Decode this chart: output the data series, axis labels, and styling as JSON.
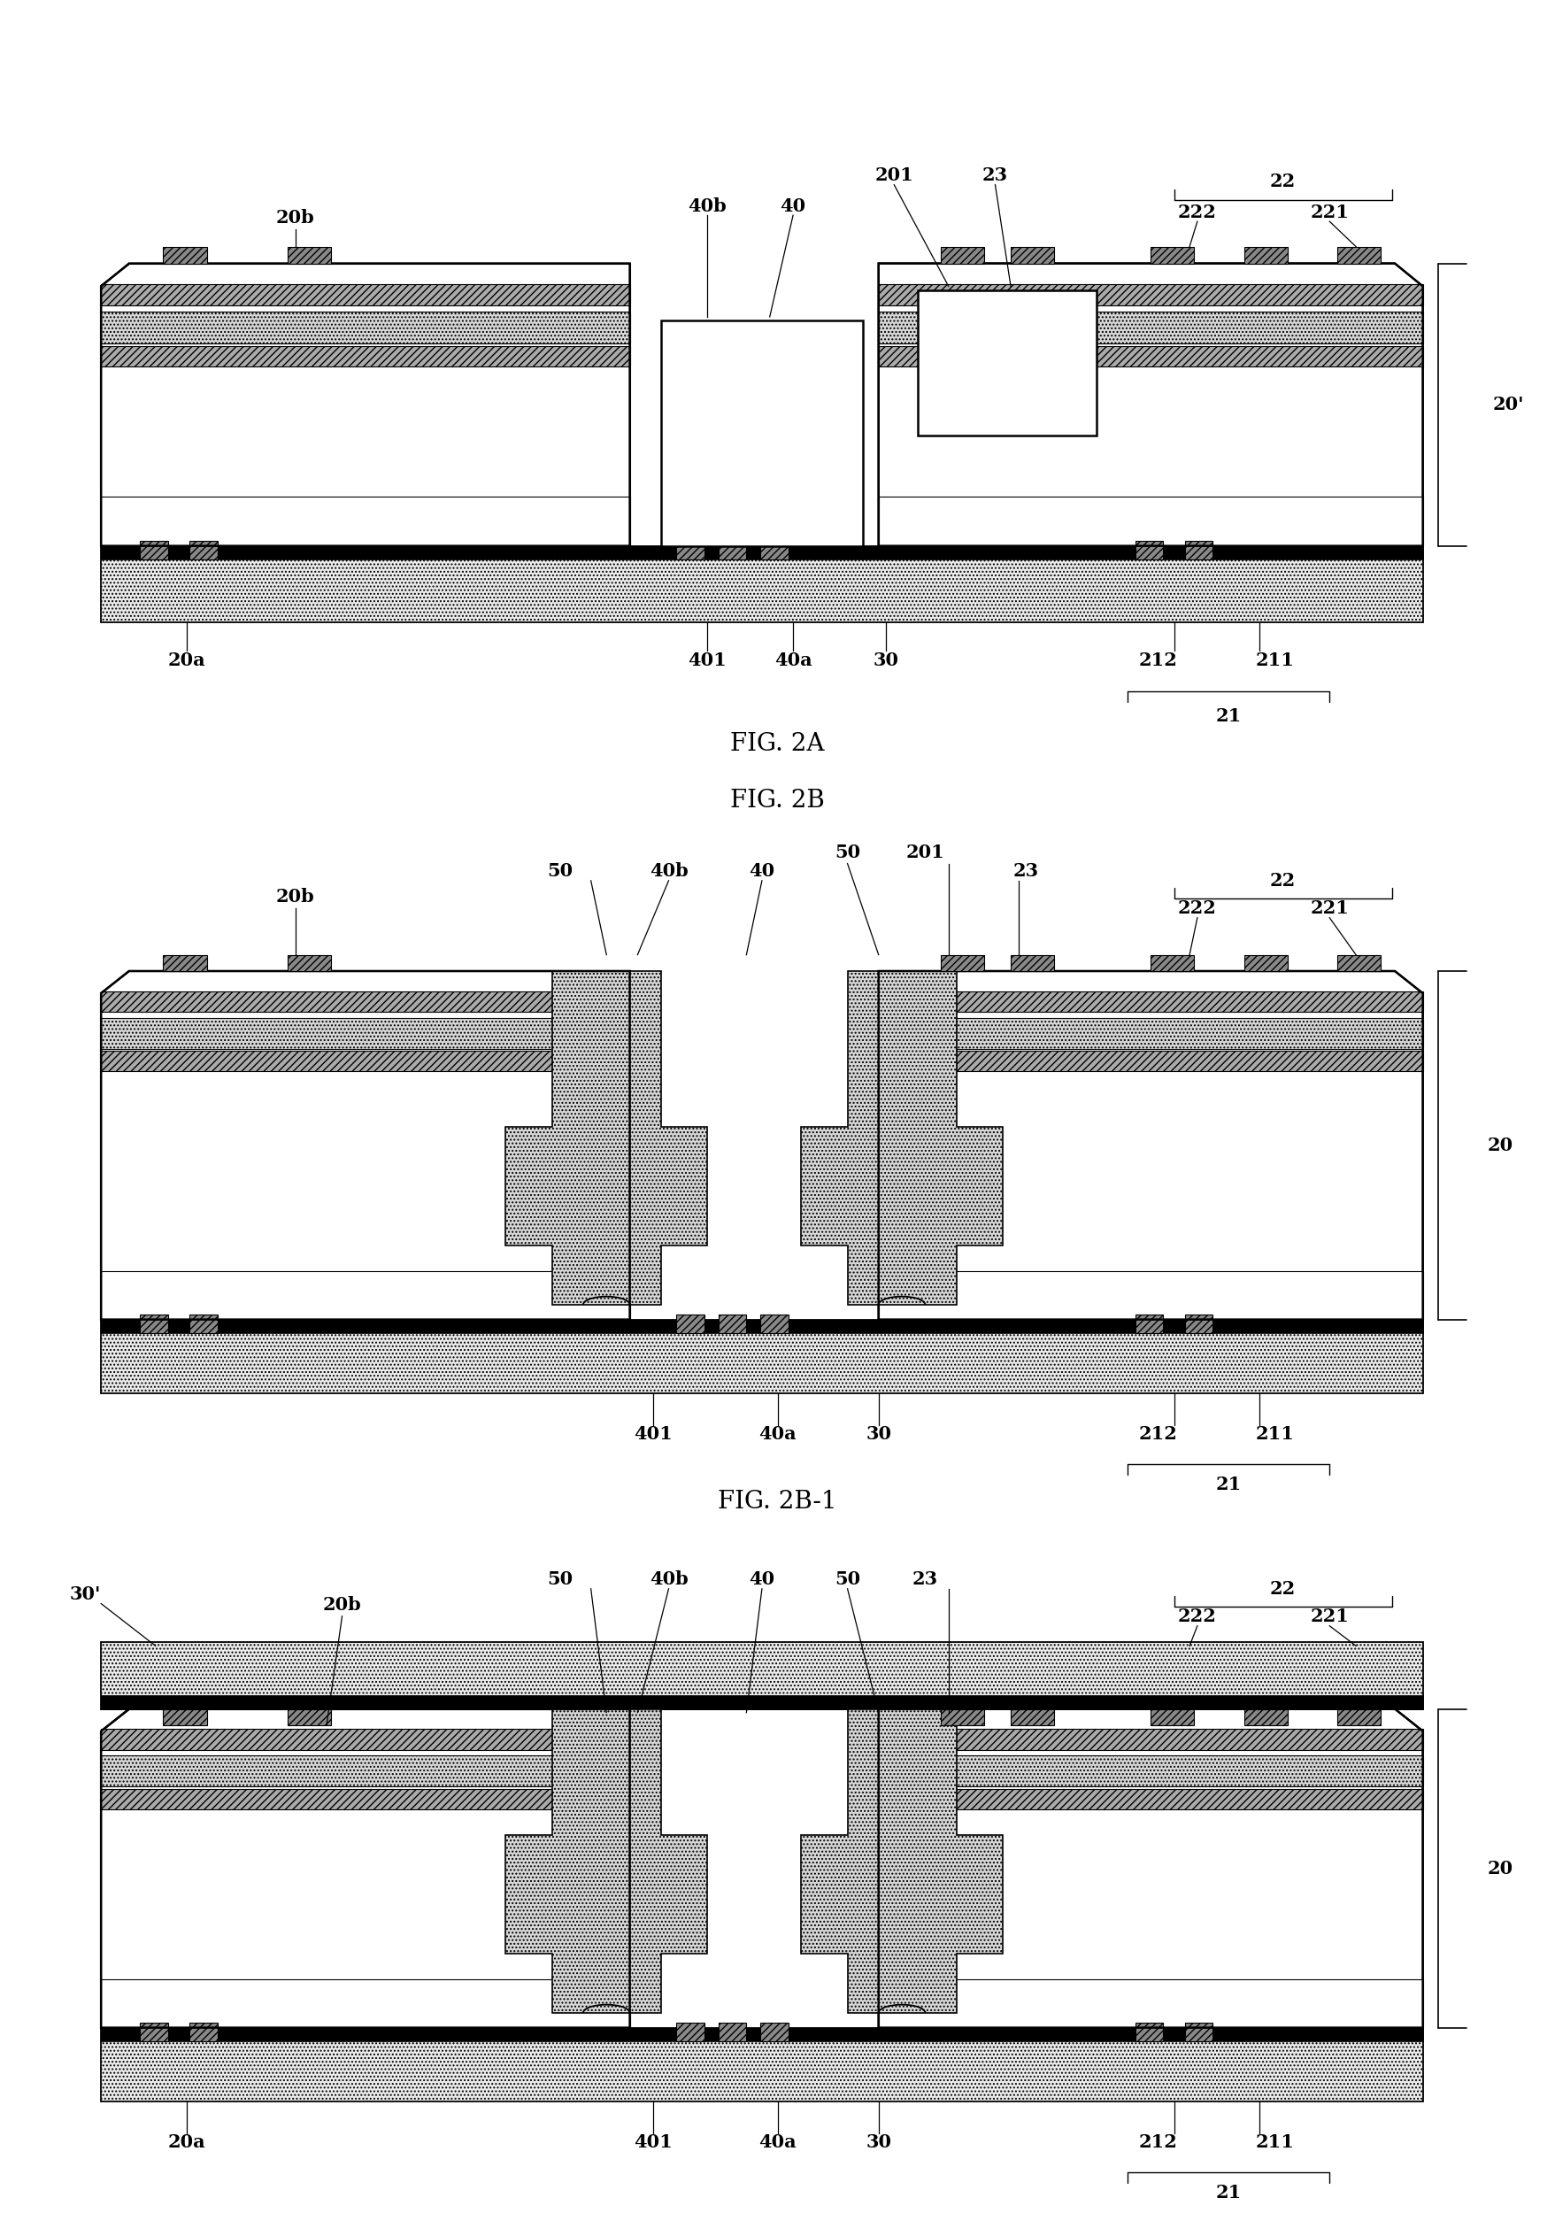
{
  "background_color": "#ffffff",
  "fig_label_fontsize": 20,
  "annotation_fontsize": 15,
  "label_fontsize": 15,
  "figures": [
    "FIG. 2A",
    "FIG. 2B",
    "FIG. 2B-1"
  ],
  "colors": {
    "white": "#ffffff",
    "substrate_fill": "#e8e8e8",
    "diagonal_fill": "#b0b0b0",
    "dot_fill": "#d8d8d8",
    "black": "#000000",
    "pad_fill": "#606060"
  }
}
